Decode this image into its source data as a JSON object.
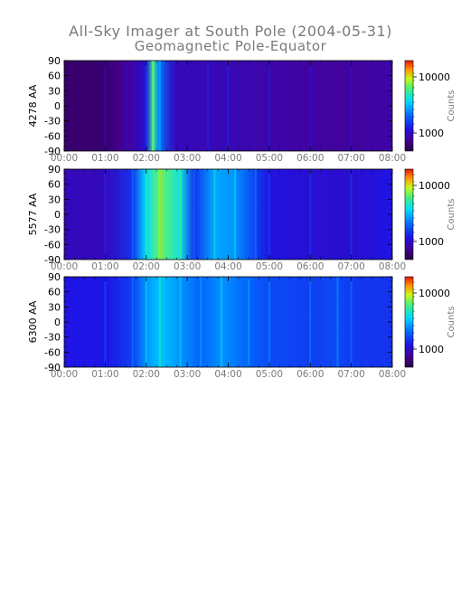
{
  "title": "All-Sky Imager at South Pole (2004-05-31)",
  "subtitle": "Geomagnetic Pole-Equator",
  "chart_data": [
    {
      "type": "heatmap",
      "ylabel": "4278 AA",
      "x_ticks": [
        "00:00",
        "01:00",
        "02:00",
        "03:00",
        "04:00",
        "05:00",
        "06:00",
        "07:00",
        "08:00"
      ],
      "y_ticks": [
        "90",
        "60",
        "30",
        "0",
        "-30",
        "-60",
        "-90"
      ],
      "xlim": [
        "00:00",
        "08:00"
      ],
      "ylim": [
        -90,
        90
      ],
      "colorbar": {
        "label": "Counts",
        "ticks": [
          "10000",
          "1000"
        ]
      },
      "intensity_by_time": [
        [
          "00:00",
          0.06
        ],
        [
          "01:00",
          0.06
        ],
        [
          "01:30",
          0.12
        ],
        [
          "02:00",
          0.22
        ],
        [
          "02:10",
          0.65
        ],
        [
          "02:20",
          0.4
        ],
        [
          "02:40",
          0.18
        ],
        [
          "03:30",
          0.17
        ],
        [
          "04:00",
          0.17
        ],
        [
          "05:00",
          0.15
        ],
        [
          "06:00",
          0.14
        ],
        [
          "07:00",
          0.13
        ],
        [
          "08:00",
          0.15
        ]
      ]
    },
    {
      "type": "heatmap",
      "ylabel": "5577 AA",
      "x_ticks": [
        "00:00",
        "01:00",
        "02:00",
        "03:00",
        "04:00",
        "05:00",
        "06:00",
        "07:00",
        "08:00"
      ],
      "y_ticks": [
        "90",
        "60",
        "30",
        "0",
        "-30",
        "-60",
        "-90"
      ],
      "xlim": [
        "00:00",
        "08:00"
      ],
      "ylim": [
        -90,
        90
      ],
      "colorbar": {
        "label": "Counts",
        "ticks": [
          "10000",
          "1000"
        ]
      },
      "intensity_by_time": [
        [
          "00:00",
          0.18
        ],
        [
          "01:00",
          0.18
        ],
        [
          "01:40",
          0.3
        ],
        [
          "02:00",
          0.55
        ],
        [
          "02:20",
          0.72
        ],
        [
          "02:50",
          0.58
        ],
        [
          "03:10",
          0.3
        ],
        [
          "03:40",
          0.48
        ],
        [
          "04:10",
          0.45
        ],
        [
          "04:40",
          0.32
        ],
        [
          "05:00",
          0.24
        ],
        [
          "06:00",
          0.22
        ],
        [
          "07:00",
          0.21
        ],
        [
          "08:00",
          0.25
        ]
      ]
    },
    {
      "type": "heatmap",
      "ylabel": "6300 AA",
      "x_ticks": [
        "00:00",
        "01:00",
        "02:00",
        "03:00",
        "04:00",
        "05:00",
        "06:00",
        "07:00",
        "08:00"
      ],
      "y_ticks": [
        "90",
        "60",
        "30",
        "0",
        "-30",
        "-60",
        "-90"
      ],
      "xlim": [
        "00:00",
        "08:00"
      ],
      "ylim": [
        -90,
        90
      ],
      "colorbar": {
        "label": "Counts",
        "ticks": [
          "10000",
          "1000"
        ]
      },
      "intensity_by_time": [
        [
          "00:00",
          0.25
        ],
        [
          "01:00",
          0.25
        ],
        [
          "01:40",
          0.32
        ],
        [
          "02:00",
          0.45
        ],
        [
          "02:20",
          0.52
        ],
        [
          "02:50",
          0.45
        ],
        [
          "03:20",
          0.38
        ],
        [
          "03:50",
          0.45
        ],
        [
          "04:30",
          0.38
        ],
        [
          "05:00",
          0.34
        ],
        [
          "06:00",
          0.32
        ],
        [
          "06:40",
          0.34
        ],
        [
          "07:00",
          0.31
        ],
        [
          "08:00",
          0.3
        ]
      ]
    }
  ]
}
